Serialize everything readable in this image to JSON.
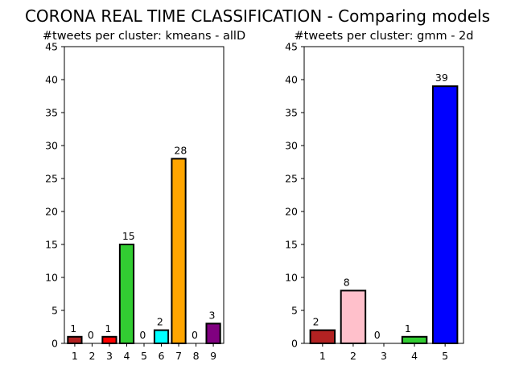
{
  "suptitle": "CORONA REAL TIME CLASSIFICATION - Comparing models",
  "chart_data": [
    {
      "type": "bar",
      "title": "#tweets per cluster: kmeans - allD",
      "xlabel": "",
      "ylabel": "",
      "categories": [
        "1",
        "2",
        "3",
        "4",
        "5",
        "6",
        "7",
        "8",
        "9"
      ],
      "values": [
        1,
        0,
        1,
        15,
        0,
        2,
        28,
        0,
        3
      ],
      "colors": [
        "#b22222",
        "#ffffff",
        "#ff0000",
        "#32cd32",
        "#ffffff",
        "#00ffff",
        "#ffa500",
        "#ffffff",
        "#800080"
      ],
      "ylim": [
        0,
        45
      ],
      "yticks": [
        0,
        5,
        10,
        15,
        20,
        25,
        30,
        35,
        40,
        45
      ],
      "grid": false,
      "legend": "none"
    },
    {
      "type": "bar",
      "title": "#tweets per cluster: gmm - 2d",
      "xlabel": "",
      "ylabel": "",
      "categories": [
        "1",
        "2",
        "3",
        "4",
        "5"
      ],
      "values": [
        2,
        8,
        0,
        1,
        39
      ],
      "colors": [
        "#b22222",
        "#ffc0cb",
        "#ffffff",
        "#32cd32",
        "#0000ff"
      ],
      "ylim": [
        0,
        45
      ],
      "yticks": [
        0,
        5,
        10,
        15,
        20,
        25,
        30,
        35,
        40,
        45
      ],
      "grid": false,
      "legend": "none"
    }
  ]
}
